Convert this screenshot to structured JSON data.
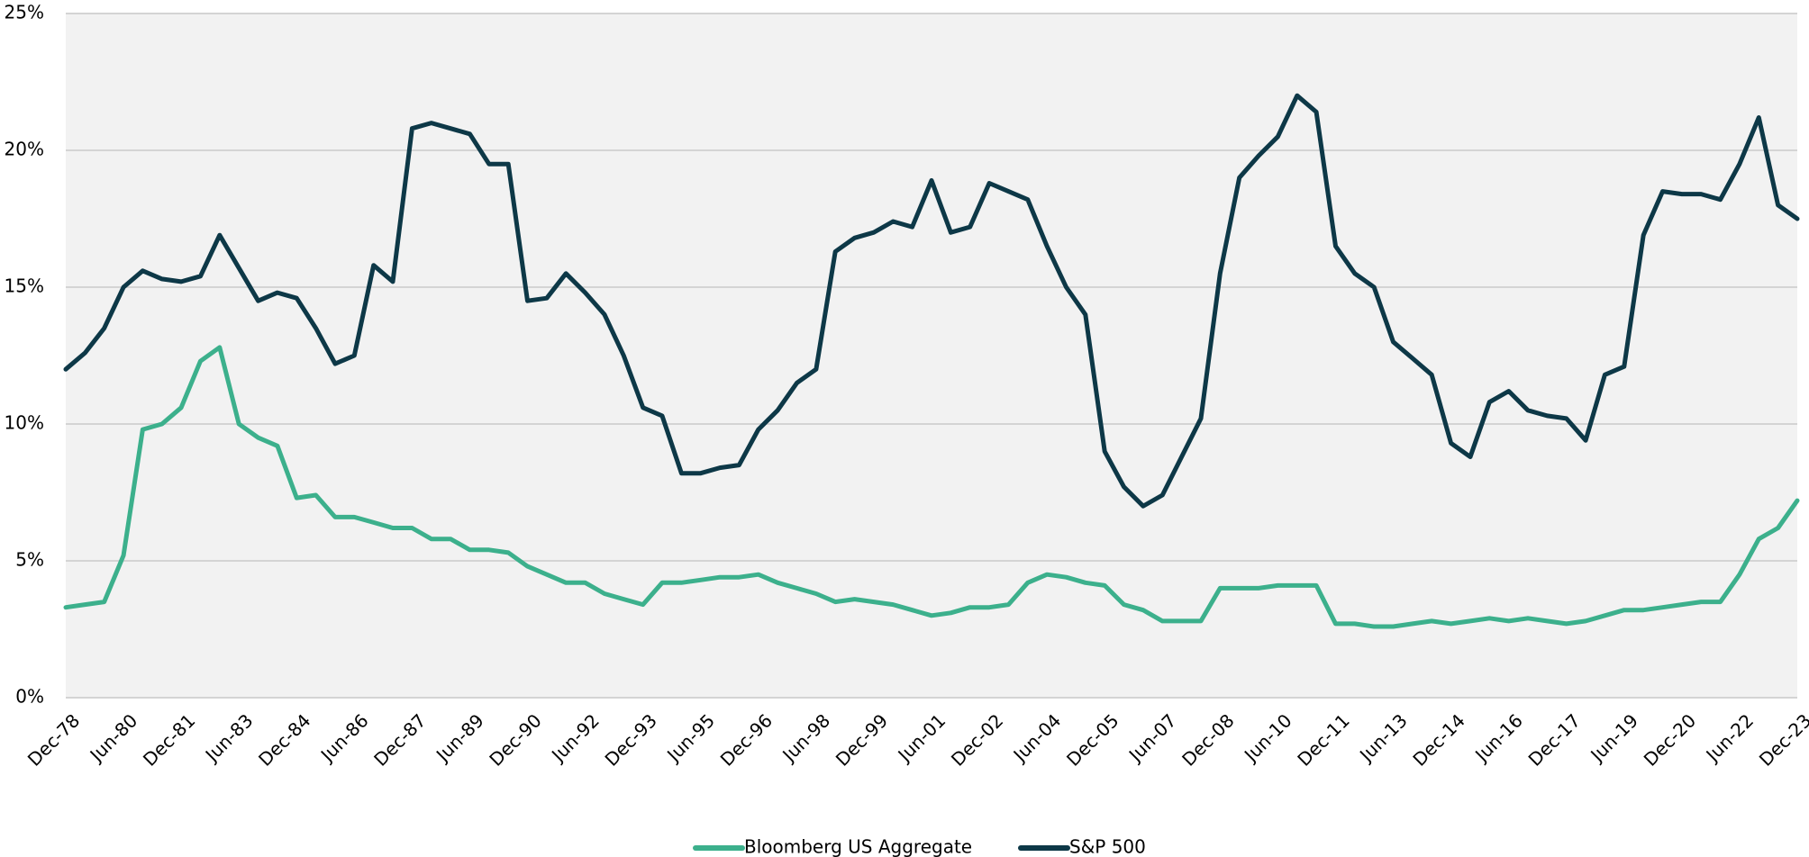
{
  "chart_data": {
    "type": "line",
    "categories": [
      "Dec-78",
      null,
      null,
      "Jun-80",
      null,
      null,
      "Dec-81",
      null,
      null,
      "Jun-83",
      null,
      null,
      "Dec-84",
      null,
      null,
      "Jun-86",
      null,
      null,
      "Dec-87",
      null,
      null,
      "Jun-89",
      null,
      null,
      "Dec-90",
      null,
      null,
      "Jun-92",
      null,
      null,
      "Dec-93",
      null,
      null,
      "Jun-95",
      null,
      null,
      "Dec-96",
      null,
      null,
      "Jun-98",
      null,
      null,
      "Dec-99",
      null,
      null,
      "Jun-01",
      null,
      null,
      "Dec-02",
      null,
      null,
      "Jun-04",
      null,
      null,
      "Dec-05",
      null,
      null,
      "Jun-07",
      null,
      null,
      "Dec-08",
      null,
      null,
      "Jun-10",
      null,
      null,
      "Dec-11",
      null,
      null,
      "Jun-13",
      null,
      null,
      "Dec-14",
      null,
      null,
      "Jun-16",
      null,
      null,
      "Dec-17",
      null,
      null,
      "Jun-19",
      null,
      null,
      "Dec-20",
      null,
      null,
      "Jun-22",
      null,
      null,
      "Dec-23"
    ],
    "series": [
      {
        "name": "Bloomberg US Aggregate",
        "color": "#3cb08c",
        "values": [
          3.3,
          3.4,
          3.5,
          5.2,
          9.8,
          10.0,
          10.6,
          12.3,
          12.8,
          10.0,
          9.5,
          9.2,
          7.3,
          7.4,
          6.6,
          6.6,
          6.4,
          6.2,
          6.2,
          5.8,
          5.8,
          5.4,
          5.4,
          5.3,
          4.8,
          4.5,
          4.2,
          4.2,
          3.8,
          3.6,
          3.4,
          4.2,
          4.2,
          4.3,
          4.4,
          4.4,
          4.5,
          4.2,
          4.0,
          3.8,
          3.5,
          3.6,
          3.5,
          3.4,
          3.2,
          3.0,
          3.1,
          3.3,
          3.3,
          3.4,
          4.2,
          4.5,
          4.4,
          4.2,
          4.1,
          3.4,
          3.2,
          2.8,
          2.8,
          2.8,
          4.0,
          4.0,
          4.0,
          4.1,
          4.1,
          4.1,
          2.7,
          2.7,
          2.6,
          2.6,
          2.7,
          2.8,
          2.7,
          2.8,
          2.9,
          2.8,
          2.9,
          2.8,
          2.7,
          2.8,
          3.0,
          3.2,
          3.2,
          3.3,
          3.4,
          3.5,
          3.5,
          4.5,
          5.8,
          6.2,
          7.2
        ]
      },
      {
        "name": "S&P 500",
        "color": "#0d3847",
        "values": [
          12.0,
          12.6,
          13.5,
          15.0,
          15.6,
          15.3,
          15.2,
          15.4,
          16.9,
          15.7,
          14.5,
          14.8,
          14.6,
          13.5,
          12.2,
          12.5,
          15.8,
          15.2,
          20.8,
          21.0,
          20.8,
          20.6,
          19.5,
          19.5,
          14.5,
          14.6,
          15.5,
          14.8,
          14.0,
          12.5,
          10.6,
          10.3,
          8.2,
          8.2,
          8.4,
          8.5,
          9.8,
          10.5,
          11.5,
          12.0,
          16.3,
          16.8,
          17.0,
          17.4,
          17.2,
          18.9,
          17.0,
          17.2,
          18.8,
          18.5,
          18.2,
          16.5,
          15.0,
          14.0,
          9.0,
          7.7,
          7.0,
          7.4,
          8.8,
          10.2,
          15.5,
          19.0,
          19.8,
          20.5,
          22.0,
          21.4,
          16.5,
          15.5,
          15.0,
          13.0,
          12.4,
          11.8,
          9.3,
          8.8,
          10.8,
          11.2,
          10.5,
          10.3,
          10.2,
          9.4,
          11.8,
          12.1,
          16.9,
          18.5,
          18.4,
          18.4,
          18.2,
          19.5,
          21.2,
          18.0,
          17.5
        ]
      }
    ],
    "ylim": [
      0,
      25
    ],
    "yticks": [
      {
        "value": 0,
        "label": "0%"
      },
      {
        "value": 5,
        "label": "5%"
      },
      {
        "value": 10,
        "label": "10%"
      },
      {
        "value": 15,
        "label": "15%"
      },
      {
        "value": 20,
        "label": "20%"
      },
      {
        "value": 25,
        "label": "25%"
      }
    ],
    "grid": true,
    "legend": "bottom"
  }
}
